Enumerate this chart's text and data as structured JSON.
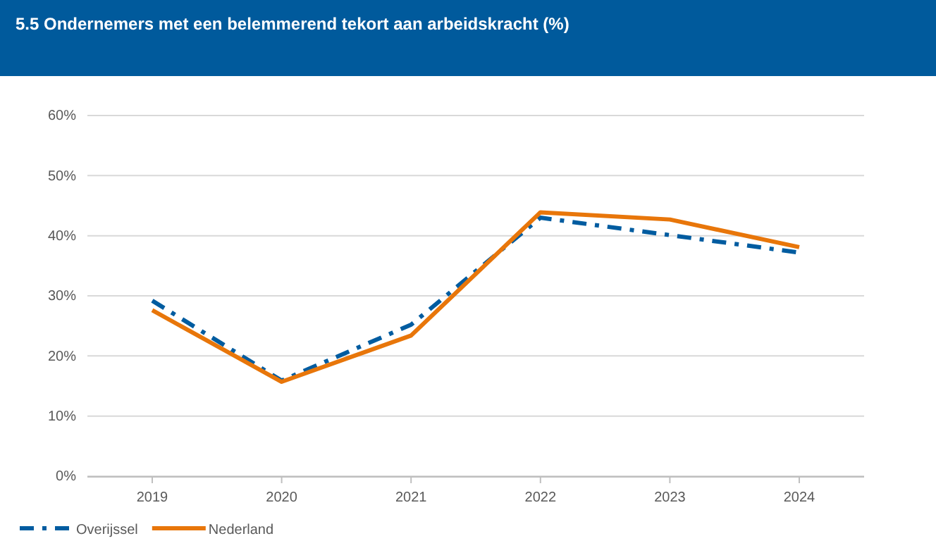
{
  "chart_data": {
    "type": "line",
    "title": "5.5 Ondernemers met een belemmerend tekort aan arbeidskracht (%)",
    "categories": [
      "2019",
      "2020",
      "2021",
      "2022",
      "2023",
      "2024"
    ],
    "series": [
      {
        "name": "Overijssel",
        "color": "#005ca0",
        "line_style": "dashdot",
        "values": [
          29.2,
          15.9,
          25.2,
          43.0,
          40.1,
          37.2
        ]
      },
      {
        "name": "Nederland",
        "color": "#e8760a",
        "line_style": "solid",
        "values": [
          27.6,
          15.7,
          23.4,
          43.9,
          42.7,
          38.1
        ]
      }
    ],
    "ylim": [
      0,
      60
    ],
    "yticks": [
      {
        "value": 0,
        "label": "0%"
      },
      {
        "value": 10,
        "label": "10%"
      },
      {
        "value": 20,
        "label": "20%"
      },
      {
        "value": 30,
        "label": "30%"
      },
      {
        "value": 40,
        "label": "40%"
      },
      {
        "value": 50,
        "label": "50%"
      },
      {
        "value": 60,
        "label": "60%"
      }
    ],
    "grid": "y",
    "legend": "bottom left",
    "marker": "none"
  }
}
